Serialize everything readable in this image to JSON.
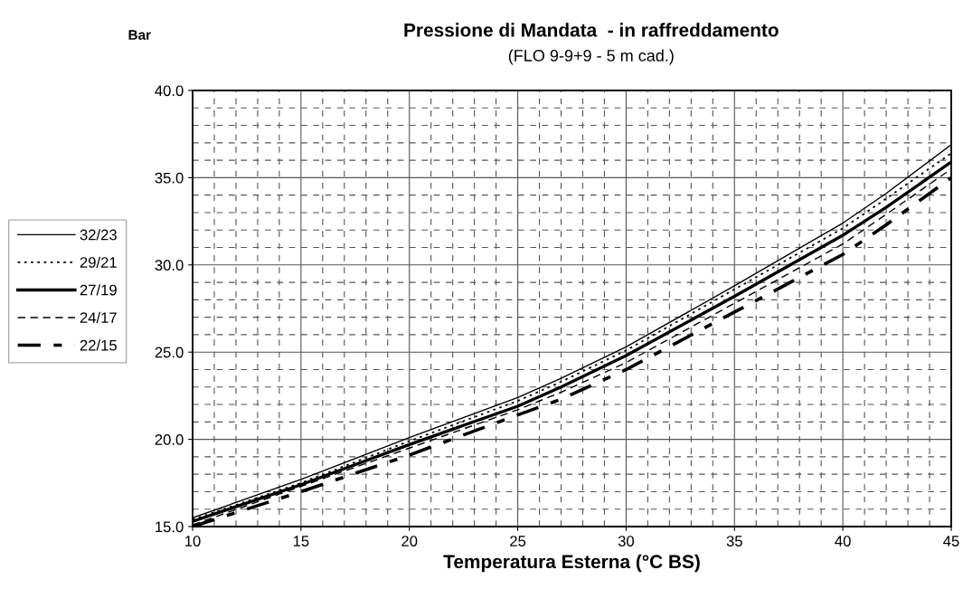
{
  "chart_data": {
    "type": "line",
    "title": "Pressione di Mandata  - in raffreddamento",
    "subtitle": "(FLO 9-9+9 - 5 m cad.)",
    "xlabel": "Temperatura Esterna (°C BS)",
    "ylabel": "Bar",
    "x": [
      10,
      15,
      20,
      25,
      27,
      30,
      35,
      40,
      42,
      45
    ],
    "series": [
      {
        "name": "32/23",
        "color": "#000000",
        "line_style": "solid",
        "values": [
          15.5,
          17.7,
          20.1,
          22.4,
          23.5,
          25.3,
          28.8,
          32.4,
          34.1,
          36.9
        ]
      },
      {
        "name": "29/21",
        "color": "#000000",
        "line_style": "dotted",
        "values": [
          15.4,
          17.5,
          19.9,
          22.2,
          23.3,
          25.1,
          28.6,
          32.1,
          33.8,
          36.4
        ]
      },
      {
        "name": "27/19",
        "color": "#000000",
        "line_style": "solid",
        "values": [
          15.3,
          17.4,
          19.7,
          21.9,
          23.0,
          24.8,
          28.2,
          31.7,
          33.3,
          35.9
        ]
      },
      {
        "name": "24/17",
        "color": "#000000",
        "line_style": "dashed",
        "values": [
          15.1,
          17.3,
          19.5,
          21.7,
          22.7,
          24.4,
          27.8,
          31.2,
          32.9,
          35.5
        ]
      },
      {
        "name": "22/15",
        "color": "#000000",
        "line_style": "dashed",
        "values": [
          15.0,
          17.0,
          19.1,
          21.4,
          22.3,
          24.0,
          27.3,
          30.6,
          32.3,
          35.0
        ]
      }
    ],
    "xlim": [
      10,
      45
    ],
    "xticks": [
      10,
      15,
      20,
      25,
      30,
      35,
      40,
      45
    ],
    "ylim": [
      15,
      40
    ],
    "yticks": [
      {
        "value": 15,
        "label": "15.0"
      },
      {
        "value": 20,
        "label": "20.0"
      },
      {
        "value": 25,
        "label": "25.0"
      },
      {
        "value": 30,
        "label": "30.0"
      },
      {
        "value": 35,
        "label": "35.0"
      },
      {
        "value": 40,
        "label": "40.0"
      }
    ],
    "grid": true,
    "legend": "left",
    "marker": "none"
  }
}
